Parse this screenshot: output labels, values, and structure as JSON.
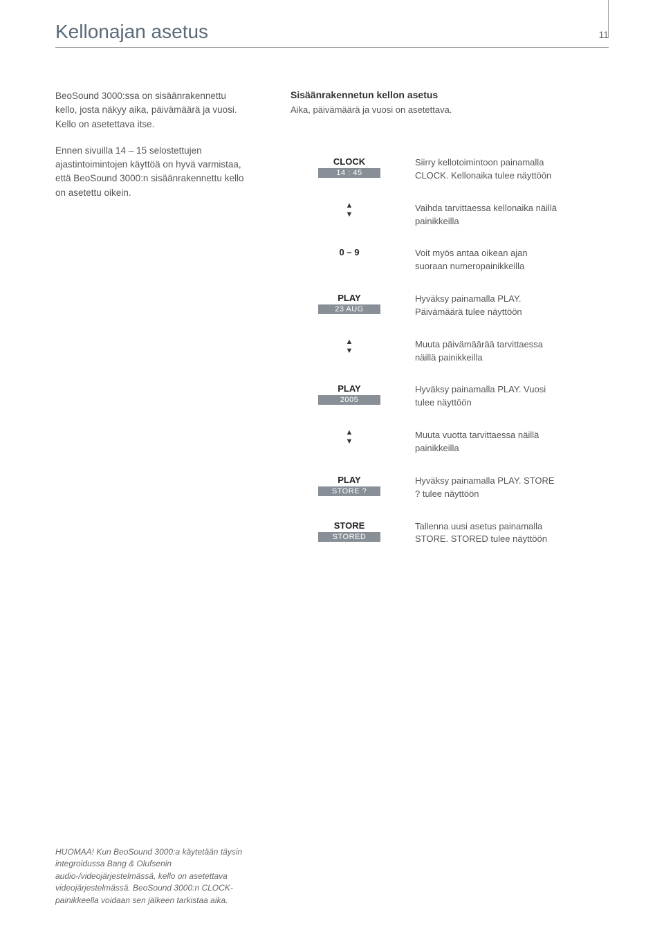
{
  "page": {
    "title": "Kellonajan asetus",
    "number": "11"
  },
  "left": {
    "p1": "BeoSound 3000:ssa on sisäänrakennettu kello, josta näkyy aika, päivämäärä ja vuosi. Kello on asetettava itse.",
    "p2": "Ennen sivuilla 14 – 15 selostettujen ajastintoimintojen käyttöä on hyvä varmistaa, että BeoSound 3000:n sisäänrakennettu kello on asetettu oikein."
  },
  "right": {
    "heading": "Sisäänrakennetun kellon asetus",
    "desc": "Aika, päivämäärä ja vuosi on asetettava."
  },
  "steps": [
    {
      "type": "labeled",
      "label": "CLOCK",
      "display": "14 : 45",
      "desc": "Siirry kellotoimintoon painamalla CLOCK. Kellonaika tulee näyttöön"
    },
    {
      "type": "arrows",
      "desc": "Vaihda tarvittaessa kellonaika näillä painikkeilla"
    },
    {
      "type": "plain",
      "label": "0 – 9",
      "desc": "Voit myös antaa oikean ajan suoraan numeropainikkeilla"
    },
    {
      "type": "labeled",
      "label": "PLAY",
      "display": "23 AUG",
      "desc": "Hyväksy painamalla PLAY. Päivämäärä tulee näyttöön"
    },
    {
      "type": "arrows",
      "desc": "Muuta päivämäärää tarvittaessa näillä painikkeilla"
    },
    {
      "type": "labeled",
      "label": "PLAY",
      "display": "2005",
      "desc": "Hyväksy painamalla PLAY. Vuosi tulee näyttöön"
    },
    {
      "type": "arrows",
      "desc": "Muuta vuotta tarvittaessa näillä painikkeilla"
    },
    {
      "type": "labeled",
      "label": "PLAY",
      "display": "STORE ?",
      "desc": "Hyväksy painamalla PLAY. STORE ? tulee näyttöön"
    },
    {
      "type": "labeled",
      "label": "STORE",
      "display": "STORED",
      "desc": "Tallenna uusi asetus painamalla STORE. STORED tulee näyttöön"
    }
  ],
  "footnote": "HUOMAA! Kun BeoSound 3000:a käytetään täysin integroidussa Bang & Olufsenin audio-/videojärjestelmässä, kello on asetettava videojärjestelmässä. BeoSound 3000:n CLOCK-painikkeella voidaan sen jälkeen tarkistaa aika."
}
